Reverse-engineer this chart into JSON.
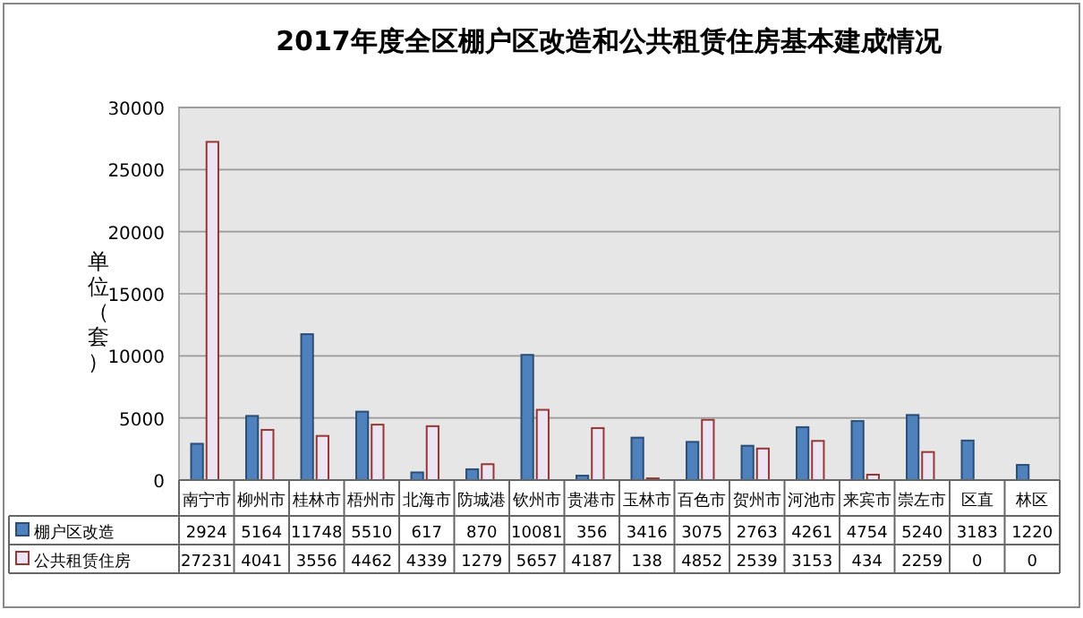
{
  "chart_data": {
    "type": "bar",
    "title": "2017年度全区棚户区改造和公共租赁住房基本建成情况",
    "ylabel": "单位（套）",
    "categories": [
      "南宁市",
      "柳州市",
      "桂林市",
      "梧州市",
      "北海市",
      "防城港",
      "钦州市",
      "贵港市",
      "玉林市",
      "百色市",
      "贺州市",
      "河池市",
      "来宾市",
      "崇左市",
      "区直",
      "林区"
    ],
    "series": [
      {
        "name": "棚户区改造",
        "color": "#4f81bd",
        "values": [
          2924,
          5164,
          11748,
          5510,
          617,
          870,
          10081,
          356,
          3416,
          3075,
          2763,
          4261,
          4754,
          5240,
          3183,
          1220
        ]
      },
      {
        "name": "公共租赁住房",
        "color": "#ece4f2",
        "values": [
          27231,
          4041,
          3556,
          4462,
          4339,
          1279,
          5657,
          4187,
          138,
          4852,
          2539,
          3153,
          434,
          2259,
          0,
          0
        ]
      }
    ],
    "ylim": [
      0,
      30000
    ],
    "yticks": [
      0,
      5000,
      10000,
      15000,
      20000,
      25000,
      30000
    ],
    "grid": "y",
    "legend": "bottom",
    "data_labels": true
  }
}
